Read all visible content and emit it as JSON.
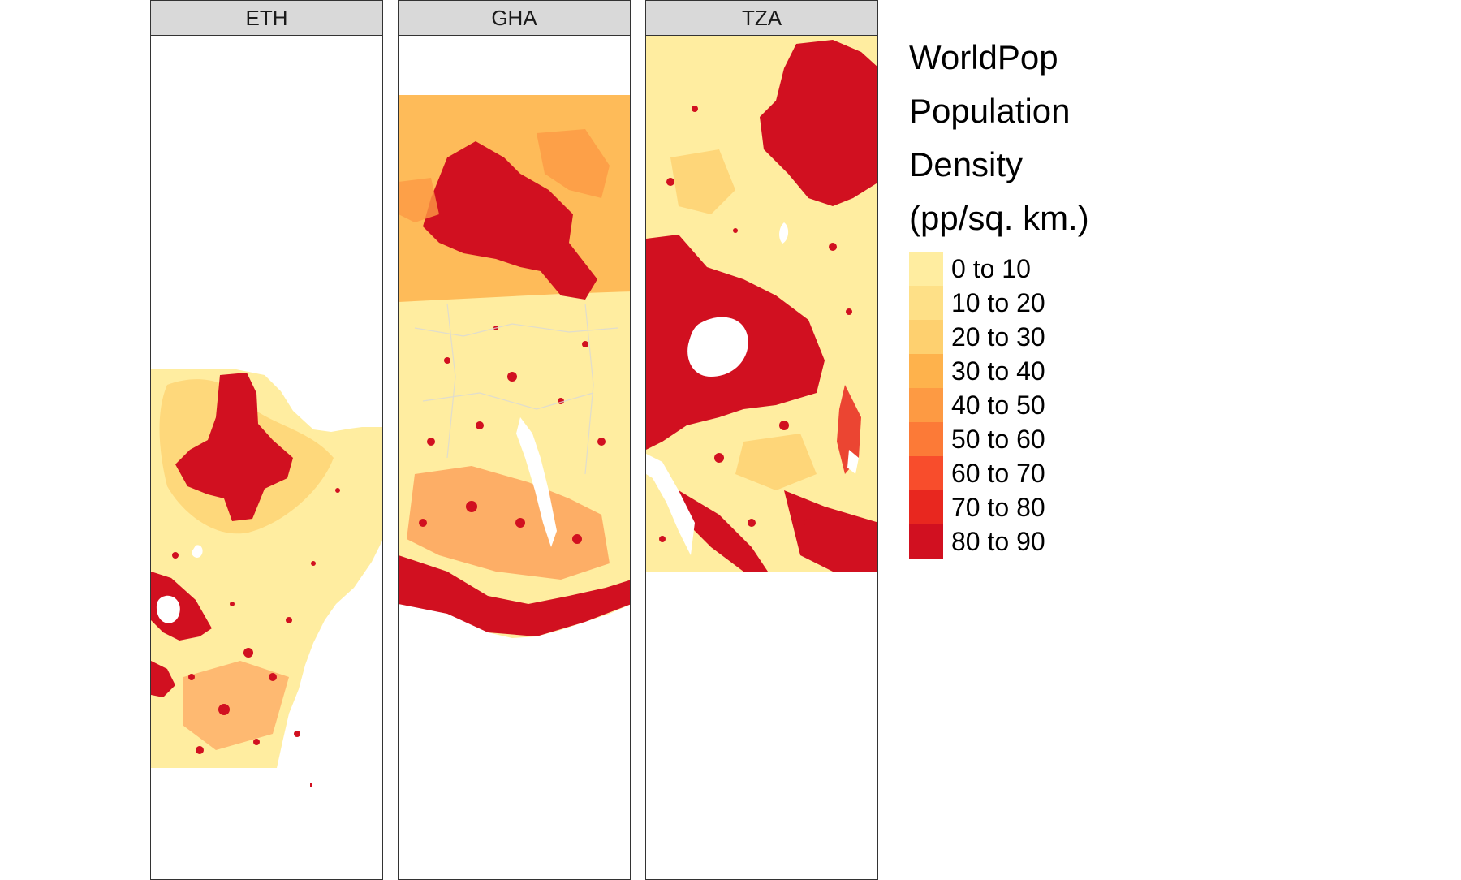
{
  "facets": [
    {
      "id": "eth",
      "label": "ETH"
    },
    {
      "id": "gha",
      "label": "GHA"
    },
    {
      "id": "tza",
      "label": "TZA"
    }
  ],
  "legend": {
    "title_lines": [
      "WorldPop",
      "Population",
      "Density",
      "(pp/sq. km.)"
    ],
    "classes": [
      {
        "label": "0 to 10",
        "color": "#FFEDA0"
      },
      {
        "label": "10 to 20",
        "color": "#FEE087"
      },
      {
        "label": "20 to 30",
        "color": "#FED06F"
      },
      {
        "label": "30 to 40",
        "color": "#FEB24C"
      },
      {
        "label": "40 to 50",
        "color": "#FD9A43"
      },
      {
        "label": "50 to 60",
        "color": "#FC7A37"
      },
      {
        "label": "60 to 70",
        "color": "#F84D2C"
      },
      {
        "label": "70 to 80",
        "color": "#E8271F"
      },
      {
        "label": "80 to 90",
        "color": "#D11020"
      }
    ]
  }
}
